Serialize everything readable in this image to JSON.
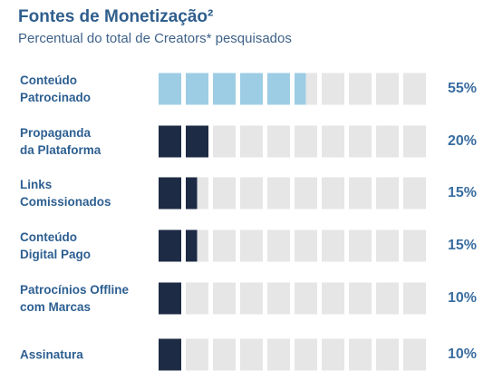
{
  "chart_data": {
    "type": "block-bar",
    "title": "Fontes de Monetização²",
    "subtitle": "Percentual do total de Creators* pesquisados",
    "categories": [
      "Conteúdo\nPatrocinado",
      "Propaganda\nda Plataforma",
      "Links\nComissionados",
      "Conteúdo\nDigital Pago",
      "Patrocínios Offline\ncom Marcas",
      "Assinatura"
    ],
    "values": [
      55,
      20,
      15,
      15,
      10,
      10
    ],
    "value_labels": [
      "55%",
      "20%",
      "15%",
      "15%",
      "10%",
      "10%"
    ],
    "colors": [
      "#9dcde4",
      "#1e2b45",
      "#1e2b45",
      "#1e2b45",
      "#1e2b45",
      "#1e2b45"
    ],
    "xlim": [
      0,
      100
    ],
    "xticks": [
      0,
      10,
      20,
      30,
      40,
      50,
      60,
      70,
      80,
      90,
      100
    ]
  }
}
